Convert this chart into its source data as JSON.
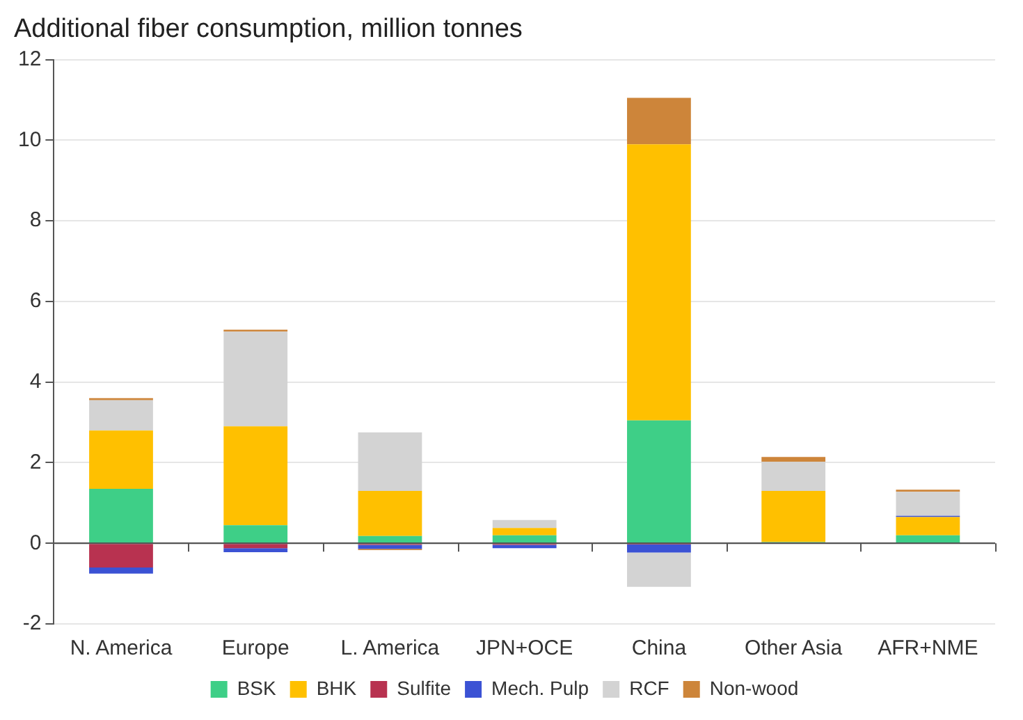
{
  "chart_data": {
    "type": "bar",
    "title": "Additional fiber consumption, million tonnes",
    "stacked": true,
    "categories": [
      "N. America",
      "Europe",
      "L. America",
      "JPN+OCE",
      "China",
      "Other Asia",
      "AFR+NME"
    ],
    "series": [
      {
        "name": "BSK",
        "color": "#3ecf87",
        "values": [
          1.35,
          0.45,
          0.18,
          0.2,
          3.05,
          0.03,
          0.2
        ]
      },
      {
        "name": "BHK",
        "color": "#ffc000",
        "values": [
          1.45,
          2.45,
          1.12,
          0.18,
          6.85,
          1.27,
          0.45
        ]
      },
      {
        "name": "Sulfite",
        "color": "#b83250",
        "values": [
          -0.6,
          -0.12,
          -0.04,
          -0.04,
          -0.03,
          null,
          null
        ]
      },
      {
        "name": "Mech. Pulp",
        "color": "#3b52d4",
        "values": [
          -0.15,
          -0.1,
          -0.1,
          -0.08,
          -0.2,
          null,
          0.03
        ]
      },
      {
        "name": "RCF",
        "color": "#d3d3d3",
        "values": [
          0.75,
          2.35,
          1.45,
          0.2,
          -0.85,
          0.72,
          0.6
        ]
      },
      {
        "name": "Non-wood",
        "color": "#cd853a",
        "values": [
          0.05,
          0.05,
          -0.03,
          null,
          1.15,
          0.12,
          0.05
        ]
      }
    ],
    "ylim": [
      -2,
      12
    ],
    "yticks": [
      -2,
      0,
      2,
      4,
      6,
      8,
      10,
      12
    ],
    "grid": "y",
    "legend": "bottom"
  }
}
